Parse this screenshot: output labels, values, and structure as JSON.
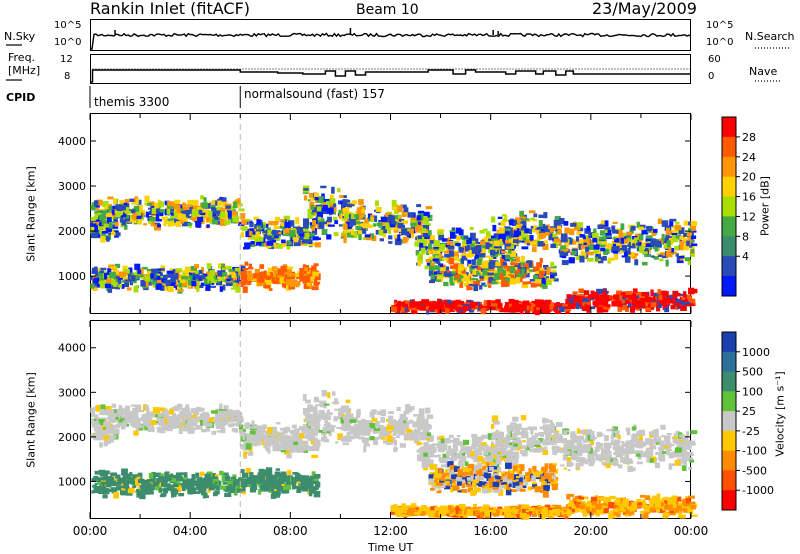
{
  "header": {
    "site": "Rankin Inlet (fitACF)",
    "beam": "Beam 10",
    "date": "23/May/2009"
  },
  "noise_panel": {
    "left_label": "N.Sky",
    "left_ticks": [
      "10^5",
      "10^0"
    ],
    "right_ticks": [
      "10^5",
      "10^0"
    ],
    "right_label": "N.Search"
  },
  "freq_panel": {
    "left_label_1": "Freq.",
    "left_label_2": "[MHz]",
    "left_ticks": [
      "12",
      "8"
    ],
    "right_ticks": [
      "60",
      "0"
    ],
    "right_label": "Nave"
  },
  "cpid": {
    "label": "CPID",
    "modes": [
      {
        "name": "themis 3300",
        "start_hour": 0
      },
      {
        "name": "normalsound (fast) 157",
        "start_hour": 6
      }
    ]
  },
  "chart_data": [
    {
      "type": "heatmap",
      "quantity": "power",
      "ylabel": "Slant Range [km]",
      "ylim": [
        180,
        4600
      ],
      "yticks": [
        1000,
        2000,
        3000,
        4000
      ],
      "xlabel": "Time UT",
      "xlim": [
        0,
        24
      ],
      "xticks": [
        "00:00",
        "04:00",
        "08:00",
        "12:00",
        "16:00",
        "20:00",
        "00:00"
      ],
      "colorbar": {
        "label": "Power [dB]",
        "ticks": [
          "28",
          "24",
          "20",
          "16",
          "12",
          "8",
          "4"
        ],
        "colors": [
          "#ff0000",
          "#ff5a00",
          "#ff9600",
          "#ffd200",
          "#aadd00",
          "#44aa44",
          "#3b8c6e",
          "#2a4ab8",
          "#0018ff"
        ]
      }
    },
    {
      "type": "heatmap",
      "quantity": "velocity",
      "ylabel": "Slant Range [km]",
      "ylim": [
        180,
        4600
      ],
      "yticks": [
        1000,
        2000,
        3000,
        4000
      ],
      "xlabel": "Time UT",
      "xlim": [
        0,
        24
      ],
      "xticks": [
        "00:00",
        "04:00",
        "08:00",
        "12:00",
        "16:00",
        "20:00",
        "00:00"
      ],
      "colorbar": {
        "label": "Velocity [m s⁻¹]",
        "ticks": [
          "1000",
          "500",
          "100",
          "25",
          "-25",
          "-100",
          "-500",
          "-1000"
        ],
        "colors": [
          "#1c3fb0",
          "#2e6f9a",
          "#3c8c6e",
          "#5fc33a",
          "#c8c8c8",
          "#ffc800",
          "#ff8c00",
          "#ff5000",
          "#ff0000"
        ]
      }
    }
  ]
}
